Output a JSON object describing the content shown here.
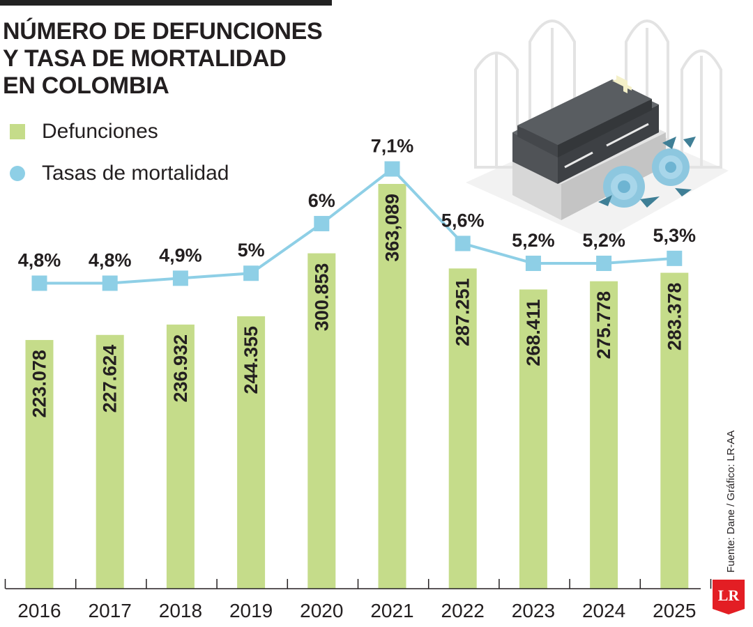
{
  "title_lines": [
    "NÚMERO DE DEFUNCIONES",
    "Y TASA DE MORTALIDAD",
    "EN COLOMBIA"
  ],
  "legend": {
    "bars_label": "Defunciones",
    "line_label": "Tasas de mortalidad"
  },
  "source": "Fuente: Dane / Gráfico: LR-AA",
  "logo_text": "LR",
  "colors": {
    "bar": "#c5dc8a",
    "line": "#8ecfe6",
    "text": "#231f20",
    "logo": "#e31e24"
  },
  "illustration": "coffin-with-roses-and-church-windows",
  "chart_data": {
    "type": "bar+line",
    "categories": [
      "2016",
      "2017",
      "2018",
      "2019",
      "2020",
      "2021",
      "2022",
      "2023",
      "2024",
      "2025"
    ],
    "series": [
      {
        "name": "Defunciones",
        "type": "bar",
        "values": [
          223078,
          227624,
          236932,
          244355,
          300853,
          363089,
          287251,
          268411,
          275778,
          283378
        ],
        "labels": [
          "223.078",
          "227.624",
          "236.932",
          "244.355",
          "300.853",
          "363,089",
          "287.251",
          "268.411",
          "275.778",
          "283.378"
        ]
      },
      {
        "name": "Tasas de mortalidad",
        "type": "line",
        "values": [
          4.8,
          4.8,
          4.9,
          5.0,
          6.0,
          7.1,
          5.6,
          5.2,
          5.2,
          5.3
        ],
        "labels": [
          "4,8%",
          "4,8%",
          "4,9%",
          "5%",
          "6%",
          "7,1%",
          "5,6%",
          "5,2%",
          "5,2%",
          "5,3%"
        ]
      }
    ],
    "grid": false,
    "legend_position": "top-left"
  }
}
